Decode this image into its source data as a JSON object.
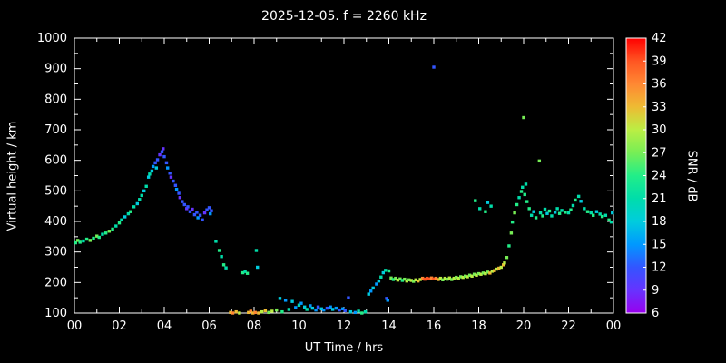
{
  "title": "2025-12-05. f = 2260 kHz",
  "chart_data": {
    "type": "scatter",
    "title": "2025-12-05. f = 2260 kHz",
    "xlabel": "UT Time / hrs",
    "ylabel": "Virtual height / km",
    "xlim": [
      0,
      24
    ],
    "ylim": [
      100,
      1000
    ],
    "grid": false,
    "x_tick_labels": [
      "00",
      "02",
      "04",
      "06",
      "08",
      "10",
      "12",
      "14",
      "16",
      "18",
      "20",
      "22",
      "00"
    ],
    "x_tick_values": [
      0,
      2,
      4,
      6,
      8,
      10,
      12,
      14,
      16,
      18,
      20,
      22,
      24
    ],
    "y_tick_values": [
      100,
      200,
      300,
      400,
      500,
      600,
      700,
      800,
      900,
      1000
    ],
    "colorbar": {
      "label": "SNR / dB",
      "range": [
        6,
        42
      ],
      "tick_values": [
        6,
        9,
        12,
        15,
        18,
        21,
        24,
        27,
        30,
        33,
        36,
        39,
        42
      ],
      "stops": [
        {
          "v": 6,
          "c": "#9900ee"
        },
        {
          "v": 9,
          "c": "#6633ff"
        },
        {
          "v": 12,
          "c": "#3355ff"
        },
        {
          "v": 15,
          "c": "#0099ff"
        },
        {
          "v": 18,
          "c": "#00ccdd"
        },
        {
          "v": 21,
          "c": "#00ddaa"
        },
        {
          "v": 24,
          "c": "#22ee88"
        },
        {
          "v": 27,
          "c": "#77ee55"
        },
        {
          "v": 30,
          "c": "#bbee44"
        },
        {
          "v": 33,
          "c": "#eebb33"
        },
        {
          "v": 36,
          "c": "#ff8833"
        },
        {
          "v": 39,
          "c": "#ff5522"
        },
        {
          "v": 42,
          "c": "#ff0000"
        }
      ]
    },
    "point_fields": [
      "ut_hour",
      "virtual_height_km",
      "snr_db"
    ],
    "points": [
      [
        0.05,
        330,
        24
      ],
      [
        0.15,
        338,
        27
      ],
      [
        0.25,
        332,
        24
      ],
      [
        0.4,
        336,
        21
      ],
      [
        0.55,
        342,
        24
      ],
      [
        0.7,
        338,
        27
      ],
      [
        0.85,
        345,
        24
      ],
      [
        1.0,
        352,
        27
      ],
      [
        1.1,
        348,
        24
      ],
      [
        1.25,
        358,
        21
      ],
      [
        1.4,
        362,
        24
      ],
      [
        1.55,
        368,
        27
      ],
      [
        1.7,
        375,
        24
      ],
      [
        1.85,
        385,
        21
      ],
      [
        2.0,
        395,
        24
      ],
      [
        2.1,
        405,
        21
      ],
      [
        2.25,
        415,
        18
      ],
      [
        2.4,
        425,
        21
      ],
      [
        2.5,
        432,
        24
      ],
      [
        2.65,
        448,
        21
      ],
      [
        2.8,
        458,
        18
      ],
      [
        2.9,
        472,
        21
      ],
      [
        3.0,
        485,
        21
      ],
      [
        3.1,
        500,
        18
      ],
      [
        3.2,
        515,
        21
      ],
      [
        3.3,
        545,
        18
      ],
      [
        3.35,
        555,
        21
      ],
      [
        3.45,
        565,
        18
      ],
      [
        3.5,
        580,
        15
      ],
      [
        3.6,
        592,
        12
      ],
      [
        3.65,
        575,
        18
      ],
      [
        3.7,
        602,
        12
      ],
      [
        3.8,
        618,
        9
      ],
      [
        3.9,
        628,
        12
      ],
      [
        3.95,
        638,
        9
      ],
      [
        4.0,
        612,
        12
      ],
      [
        4.1,
        592,
        12
      ],
      [
        4.15,
        575,
        15
      ],
      [
        4.25,
        558,
        12
      ],
      [
        4.3,
        545,
        9
      ],
      [
        4.4,
        532,
        12
      ],
      [
        4.5,
        518,
        12
      ],
      [
        4.55,
        505,
        15
      ],
      [
        4.65,
        492,
        12
      ],
      [
        4.7,
        478,
        9
      ],
      [
        4.8,
        465,
        12
      ],
      [
        4.9,
        455,
        12
      ],
      [
        5.0,
        442,
        9
      ],
      [
        5.05,
        448,
        12
      ],
      [
        5.15,
        432,
        12
      ],
      [
        5.25,
        440,
        9
      ],
      [
        5.35,
        422,
        12
      ],
      [
        5.45,
        430,
        12
      ],
      [
        5.5,
        412,
        15
      ],
      [
        5.6,
        420,
        12
      ],
      [
        5.7,
        405,
        12
      ],
      [
        5.8,
        428,
        9
      ],
      [
        5.9,
        438,
        12
      ],
      [
        6.0,
        445,
        12
      ],
      [
        6.05,
        425,
        15
      ],
      [
        6.1,
        435,
        12
      ],
      [
        6.3,
        335,
        21
      ],
      [
        6.45,
        305,
        24
      ],
      [
        6.55,
        285,
        21
      ],
      [
        6.65,
        258,
        24
      ],
      [
        6.75,
        248,
        21
      ],
      [
        6.95,
        102,
        33
      ],
      [
        7.05,
        100,
        36
      ],
      [
        7.2,
        104,
        33
      ],
      [
        7.35,
        100,
        30
      ],
      [
        7.5,
        232,
        24
      ],
      [
        7.6,
        236,
        21
      ],
      [
        7.7,
        230,
        24
      ],
      [
        7.75,
        102,
        33
      ],
      [
        7.85,
        106,
        36
      ],
      [
        7.95,
        100,
        33
      ],
      [
        8.05,
        102,
        36
      ],
      [
        8.1,
        305,
        21
      ],
      [
        8.15,
        250,
        18
      ],
      [
        8.2,
        100,
        33
      ],
      [
        8.35,
        104,
        30
      ],
      [
        8.5,
        108,
        33
      ],
      [
        8.65,
        102,
        27
      ],
      [
        8.8,
        106,
        30
      ],
      [
        9.0,
        110,
        27
      ],
      [
        9.15,
        148,
        18
      ],
      [
        9.25,
        104,
        24
      ],
      [
        9.4,
        142,
        15
      ],
      [
        9.55,
        112,
        21
      ],
      [
        9.7,
        138,
        18
      ],
      [
        9.85,
        118,
        15
      ],
      [
        10.0,
        126,
        21
      ],
      [
        10.1,
        132,
        15
      ],
      [
        10.25,
        120,
        18
      ],
      [
        10.35,
        112,
        21
      ],
      [
        10.5,
        124,
        15
      ],
      [
        10.6,
        116,
        18
      ],
      [
        10.75,
        110,
        15
      ],
      [
        10.85,
        120,
        12
      ],
      [
        11.0,
        114,
        18
      ],
      [
        11.1,
        110,
        15
      ],
      [
        11.25,
        116,
        12
      ],
      [
        11.4,
        120,
        15
      ],
      [
        11.5,
        112,
        18
      ],
      [
        11.65,
        116,
        15
      ],
      [
        11.8,
        110,
        12
      ],
      [
        11.95,
        114,
        15
      ],
      [
        12.05,
        108,
        12
      ],
      [
        12.2,
        150,
        12
      ],
      [
        12.3,
        104,
        18
      ],
      [
        12.5,
        102,
        15
      ],
      [
        12.65,
        106,
        21
      ],
      [
        12.8,
        100,
        24
      ],
      [
        12.95,
        104,
        21
      ],
      [
        13.1,
        162,
        18
      ],
      [
        13.2,
        172,
        15
      ],
      [
        13.3,
        182,
        18
      ],
      [
        13.45,
        195,
        15
      ],
      [
        13.55,
        205,
        18
      ],
      [
        13.65,
        218,
        21
      ],
      [
        13.75,
        232,
        18
      ],
      [
        13.85,
        240,
        21
      ],
      [
        13.9,
        148,
        12
      ],
      [
        13.95,
        142,
        15
      ],
      [
        14.0,
        238,
        24
      ],
      [
        14.1,
        215,
        27
      ],
      [
        14.2,
        210,
        24
      ],
      [
        14.3,
        214,
        27
      ],
      [
        14.4,
        208,
        30
      ],
      [
        14.5,
        212,
        27
      ],
      [
        14.6,
        207,
        24
      ],
      [
        14.7,
        211,
        27
      ],
      [
        14.8,
        205,
        30
      ],
      [
        14.9,
        209,
        27
      ],
      [
        15.0,
        207,
        30
      ],
      [
        15.1,
        204,
        27
      ],
      [
        15.2,
        209,
        30
      ],
      [
        15.3,
        205,
        33
      ],
      [
        15.4,
        210,
        30
      ],
      [
        15.5,
        214,
        36
      ],
      [
        15.6,
        211,
        39
      ],
      [
        15.7,
        214,
        39
      ],
      [
        15.8,
        212,
        39
      ],
      [
        15.9,
        215,
        36
      ],
      [
        16.0,
        212,
        39
      ],
      [
        16.1,
        214,
        36
      ],
      [
        16.2,
        210,
        33
      ],
      [
        16.3,
        214,
        30
      ],
      [
        16.4,
        209,
        27
      ],
      [
        16.5,
        214,
        30
      ],
      [
        16.6,
        211,
        27
      ],
      [
        16.7,
        215,
        30
      ],
      [
        16.8,
        210,
        27
      ],
      [
        16.9,
        214,
        30
      ],
      [
        17.0,
        217,
        27
      ],
      [
        17.1,
        214,
        30
      ],
      [
        17.2,
        219,
        27
      ],
      [
        17.3,
        217,
        30
      ],
      [
        17.4,
        221,
        27
      ],
      [
        17.5,
        219,
        30
      ],
      [
        17.6,
        224,
        27
      ],
      [
        17.7,
        221,
        30
      ],
      [
        17.8,
        227,
        27
      ],
      [
        17.9,
        224,
        30
      ],
      [
        18.0,
        229,
        27
      ],
      [
        18.1,
        227,
        30
      ],
      [
        18.2,
        231,
        27
      ],
      [
        18.3,
        229,
        30
      ],
      [
        18.4,
        234,
        27
      ],
      [
        18.5,
        231,
        33
      ],
      [
        18.6,
        237,
        30
      ],
      [
        18.7,
        239,
        33
      ],
      [
        18.8,
        244,
        30
      ],
      [
        18.9,
        247,
        33
      ],
      [
        19.0,
        250,
        30
      ],
      [
        16.0,
        905,
        12
      ],
      [
        17.85,
        468,
        24
      ],
      [
        18.05,
        442,
        21
      ],
      [
        18.3,
        432,
        24
      ],
      [
        18.4,
        462,
        18
      ],
      [
        18.55,
        450,
        21
      ],
      [
        19.1,
        258,
        33
      ],
      [
        19.15,
        264,
        30
      ],
      [
        19.25,
        282,
        27
      ],
      [
        19.35,
        320,
        24
      ],
      [
        19.45,
        362,
        27
      ],
      [
        19.5,
        398,
        24
      ],
      [
        19.6,
        428,
        27
      ],
      [
        19.7,
        455,
        24
      ],
      [
        19.8,
        478,
        21
      ],
      [
        19.9,
        498,
        24
      ],
      [
        19.95,
        512,
        21
      ],
      [
        20.0,
        740,
        27
      ],
      [
        20.05,
        488,
        24
      ],
      [
        20.1,
        522,
        21
      ],
      [
        20.15,
        465,
        24
      ],
      [
        20.25,
        442,
        24
      ],
      [
        20.35,
        420,
        21
      ],
      [
        20.45,
        432,
        18
      ],
      [
        20.55,
        412,
        24
      ],
      [
        20.7,
        598,
        27
      ],
      [
        20.75,
        428,
        21
      ],
      [
        20.85,
        418,
        24
      ],
      [
        20.95,
        440,
        21
      ],
      [
        21.05,
        426,
        18
      ],
      [
        21.15,
        434,
        24
      ],
      [
        21.25,
        418,
        21
      ],
      [
        21.4,
        430,
        18
      ],
      [
        21.5,
        442,
        21
      ],
      [
        21.6,
        426,
        24
      ],
      [
        21.7,
        436,
        21
      ],
      [
        21.85,
        430,
        24
      ],
      [
        22.0,
        428,
        21
      ],
      [
        22.1,
        438,
        24
      ],
      [
        22.2,
        452,
        21
      ],
      [
        22.3,
        470,
        24
      ],
      [
        22.45,
        482,
        21
      ],
      [
        22.55,
        466,
        18
      ],
      [
        22.7,
        442,
        21
      ],
      [
        22.85,
        432,
        24
      ],
      [
        23.0,
        428,
        21
      ],
      [
        23.1,
        420,
        24
      ],
      [
        23.25,
        432,
        18
      ],
      [
        23.4,
        424,
        21
      ],
      [
        23.5,
        416,
        24
      ],
      [
        23.65,
        420,
        21
      ],
      [
        23.8,
        405,
        24
      ],
      [
        23.9,
        398,
        21
      ],
      [
        23.95,
        428,
        18
      ]
    ]
  }
}
